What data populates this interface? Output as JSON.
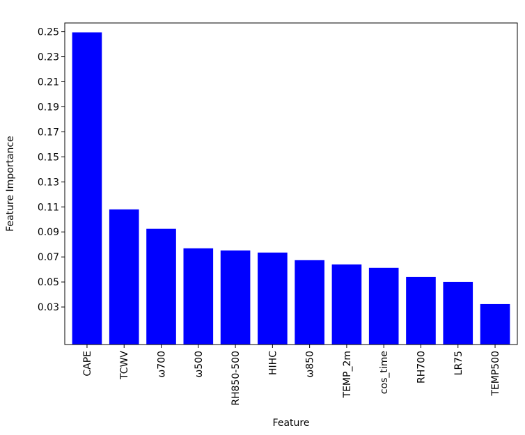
{
  "chart_data": {
    "type": "bar",
    "categories": [
      "CAPE",
      "TCWV",
      "ω700",
      "ω500",
      "RH850-500",
      "HIHC",
      "ω850",
      "TEMP_2m",
      "cos_time",
      "RH700",
      "LR75",
      "TEMP500"
    ],
    "values": [
      0.2495,
      0.108,
      0.0925,
      0.0769,
      0.0752,
      0.0735,
      0.0674,
      0.064,
      0.0613,
      0.054,
      0.0501,
      0.0323
    ],
    "color": "#0000ff",
    "x_label": "Feature",
    "y_label": "Feature Importance",
    "ylim": [
      0,
      0.257
    ],
    "yticks": [
      0.03,
      0.05,
      0.07,
      0.09,
      0.11,
      0.13,
      0.15,
      0.17,
      0.19,
      0.21,
      0.23,
      0.25
    ]
  }
}
